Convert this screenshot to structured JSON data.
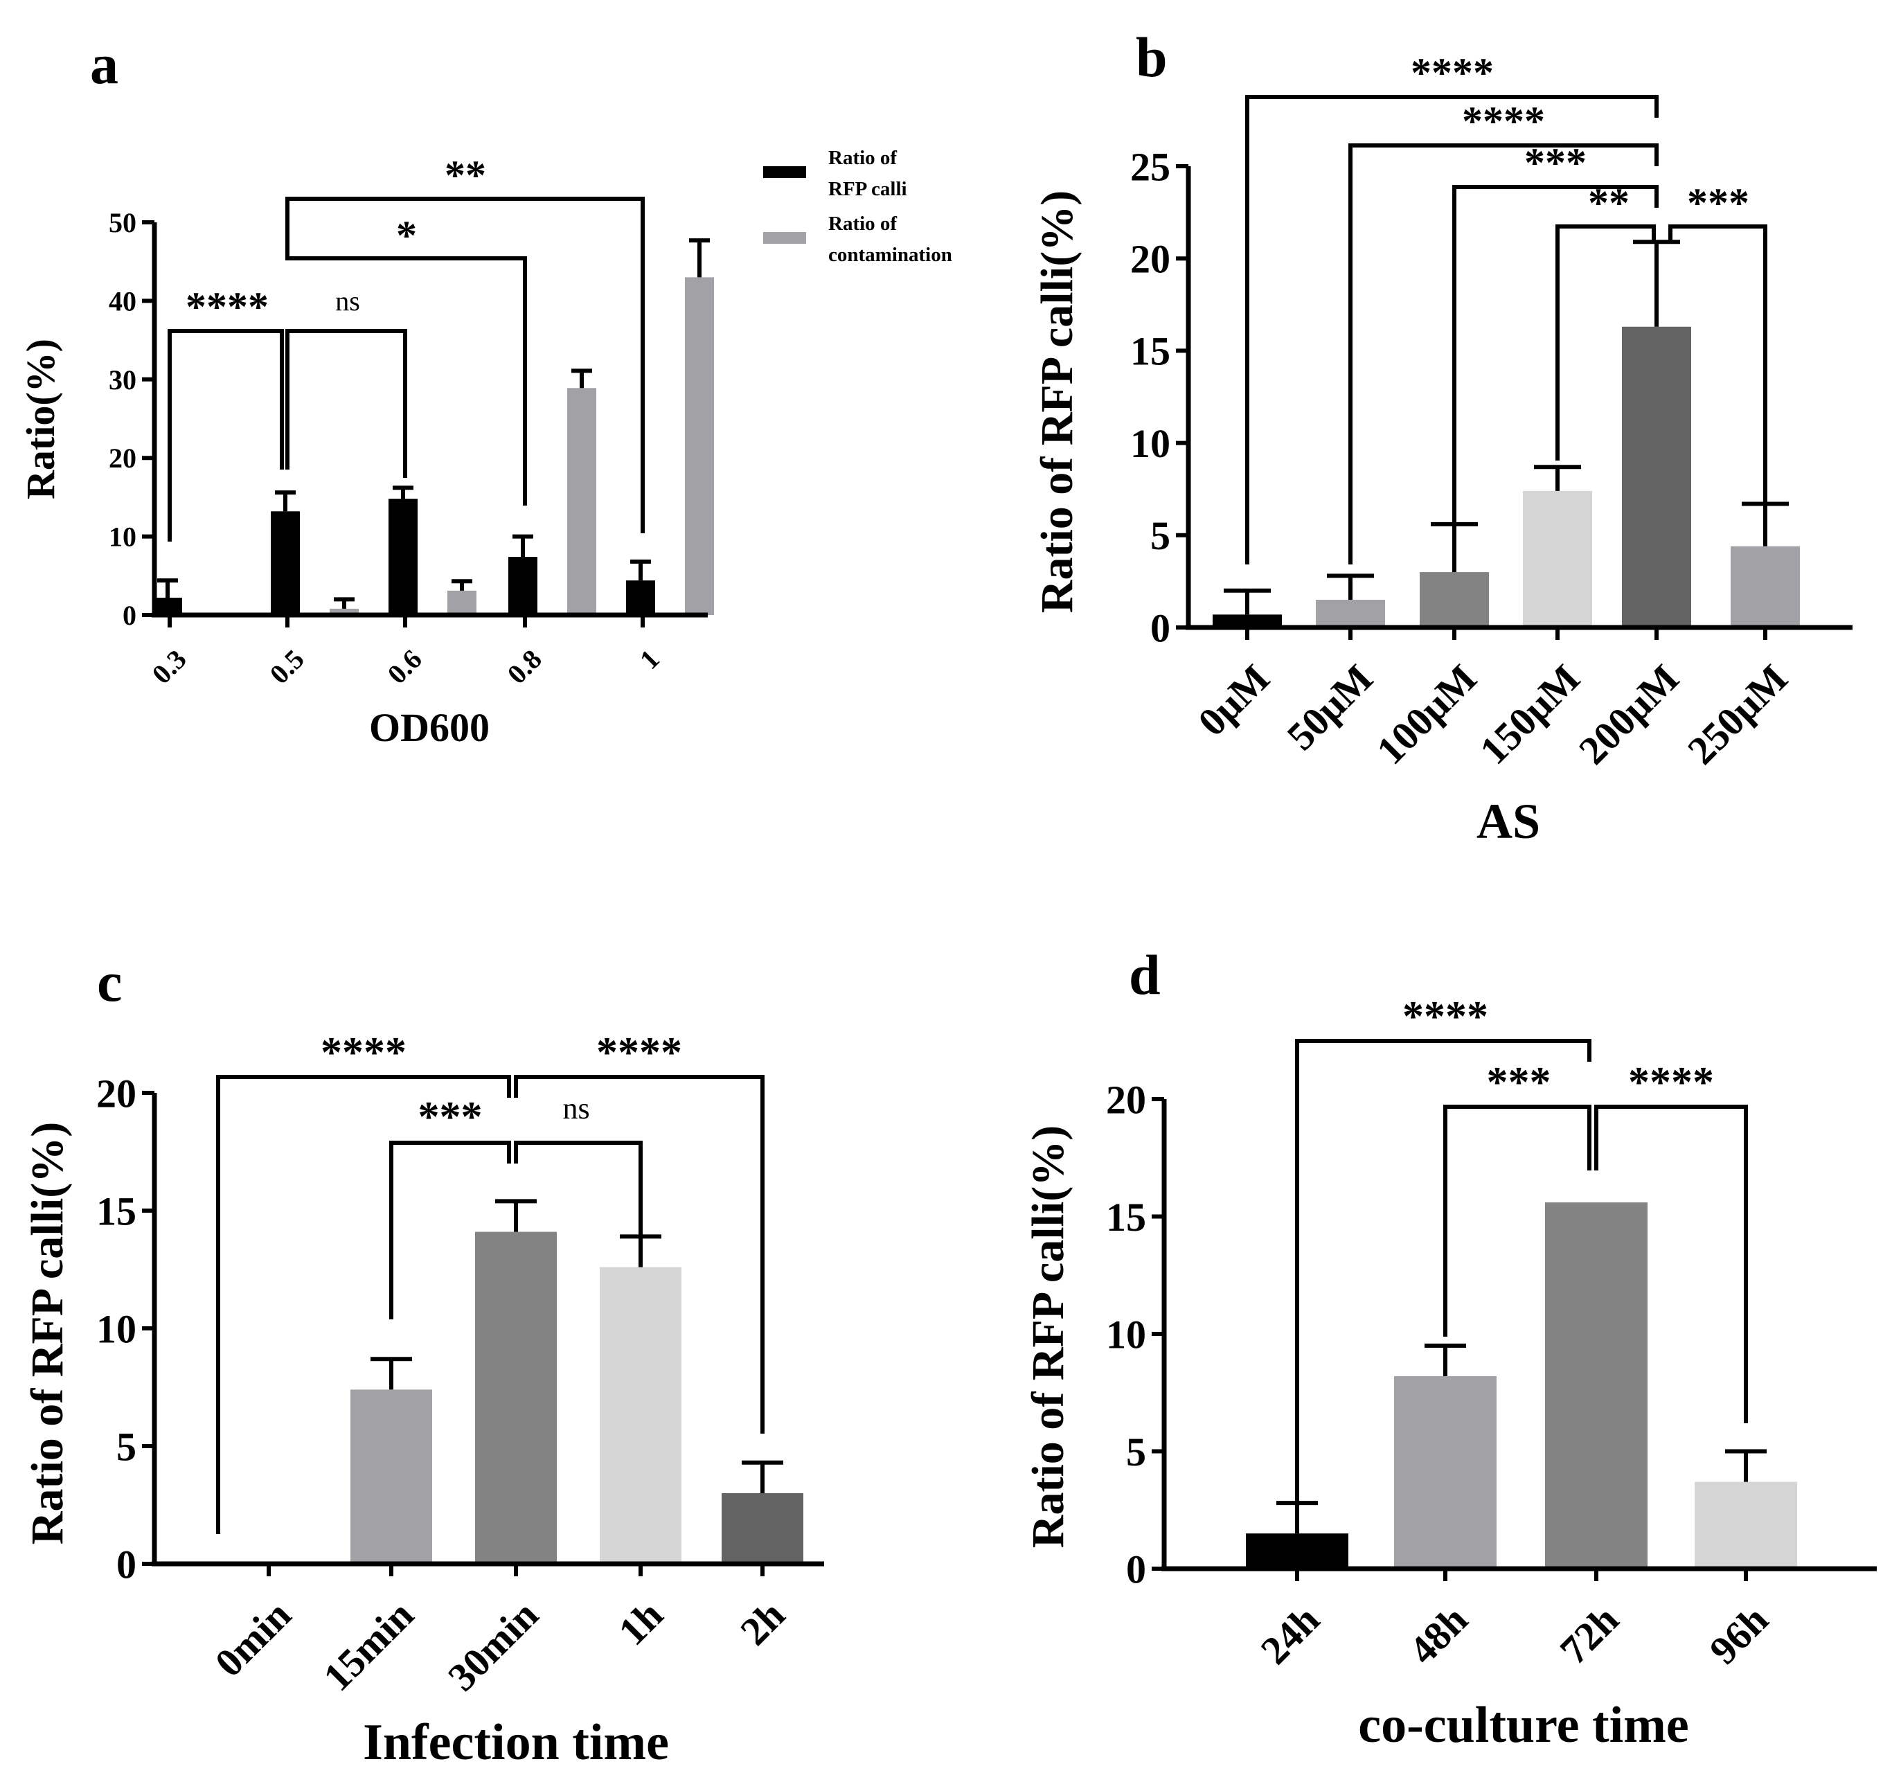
{
  "colors": {
    "black": "#000000",
    "gray_medium": "#a2a1a6",
    "gray_dark": "#838383",
    "gray_light": "#d5d5d5",
    "gray_darkest": "#636363"
  },
  "chart_data": [
    {
      "id": "a",
      "type": "bar",
      "panel_letter": "a",
      "xlabel": "OD600",
      "ylabel": "Ratio(%)",
      "ylim": [
        0,
        50
      ],
      "yticks": [
        "0",
        "10",
        "20",
        "30",
        "40",
        "50"
      ],
      "categories": [
        "0.3",
        "0.5",
        "0.6",
        "0.8",
        "1"
      ],
      "series": [
        {
          "name": "Ratio of RFP calli",
          "color": "#000000",
          "values": [
            2.2,
            13.2,
            14.8,
            7.4,
            4.4
          ],
          "errors": [
            2.2,
            2.4,
            1.4,
            2.6,
            2.4
          ]
        },
        {
          "name": "Ratio of contamination",
          "color": "#a2a1a6",
          "values": [
            0,
            0.8,
            3.1,
            28.9,
            43.0
          ],
          "errors": [
            0,
            1.2,
            1.2,
            2.2,
            4.7
          ]
        }
      ],
      "legend": [
        {
          "line1": "Ratio of",
          "line2": "RFP calli"
        },
        {
          "line1": "Ratio of",
          "line2": "contamination"
        }
      ],
      "significance": [
        {
          "label": "****",
          "ns": false
        },
        {
          "label": "ns",
          "ns": true
        },
        {
          "label": "*",
          "ns": false
        },
        {
          "label": "**",
          "ns": false
        }
      ]
    },
    {
      "id": "b",
      "type": "bar",
      "panel_letter": "b",
      "xlabel": "AS",
      "ylabel": "Ratio of RFP calli(%)",
      "ylim": [
        0,
        25
      ],
      "yticks": [
        "0",
        "5",
        "10",
        "15",
        "20",
        "25"
      ],
      "categories": [
        "0μM",
        "50μM",
        "100μM",
        "150μM",
        "200μM",
        "250μM"
      ],
      "values": [
        0.7,
        1.5,
        3.0,
        7.4,
        16.3,
        4.4
      ],
      "errors": [
        1.3,
        1.3,
        2.6,
        1.3,
        4.6,
        2.3
      ],
      "colors": [
        "#000000",
        "#a2a1a6",
        "#838383",
        "#d5d5d5",
        "#636363",
        "#a2a1a6"
      ],
      "significance": [
        {
          "label": "****"
        },
        {
          "label": "****"
        },
        {
          "label": "***"
        },
        {
          "label": "**"
        },
        {
          "label": "***"
        }
      ]
    },
    {
      "id": "c",
      "type": "bar",
      "panel_letter": "c",
      "xlabel": "Infection time",
      "ylabel": "Ratio of RFP calli(%)",
      "ylim": [
        0,
        20
      ],
      "yticks": [
        "0",
        "5",
        "10",
        "15",
        "20"
      ],
      "categories": [
        "0min",
        "15min",
        "30min",
        "1h",
        "2h"
      ],
      "values": [
        0,
        7.4,
        14.1,
        12.6,
        3.0
      ],
      "errors": [
        0,
        1.3,
        1.3,
        1.3,
        1.3
      ],
      "colors": [
        "#000000",
        "#a2a1a6",
        "#838383",
        "#d5d5d5",
        "#636363"
      ],
      "significance": [
        {
          "label": "****",
          "ns": false
        },
        {
          "label": "****",
          "ns": false
        },
        {
          "label": "***",
          "ns": false
        },
        {
          "label": "ns",
          "ns": true
        }
      ]
    },
    {
      "id": "d",
      "type": "bar",
      "panel_letter": "d",
      "xlabel": "co-culture time",
      "ylabel": "Ratio of RFP calli(%)",
      "ylim": [
        0,
        20
      ],
      "yticks": [
        "0",
        "5",
        "10",
        "15",
        "20"
      ],
      "categories": [
        "24h",
        "48h",
        "72h",
        "96h"
      ],
      "values": [
        1.5,
        8.2,
        15.6,
        3.7
      ],
      "errors": [
        1.3,
        1.3,
        0,
        1.3
      ],
      "colors": [
        "#000000",
        "#a2a1a6",
        "#838383",
        "#d5d5d5"
      ],
      "significance": [
        {
          "label": "****"
        },
        {
          "label": "***"
        },
        {
          "label": "****"
        }
      ]
    }
  ]
}
